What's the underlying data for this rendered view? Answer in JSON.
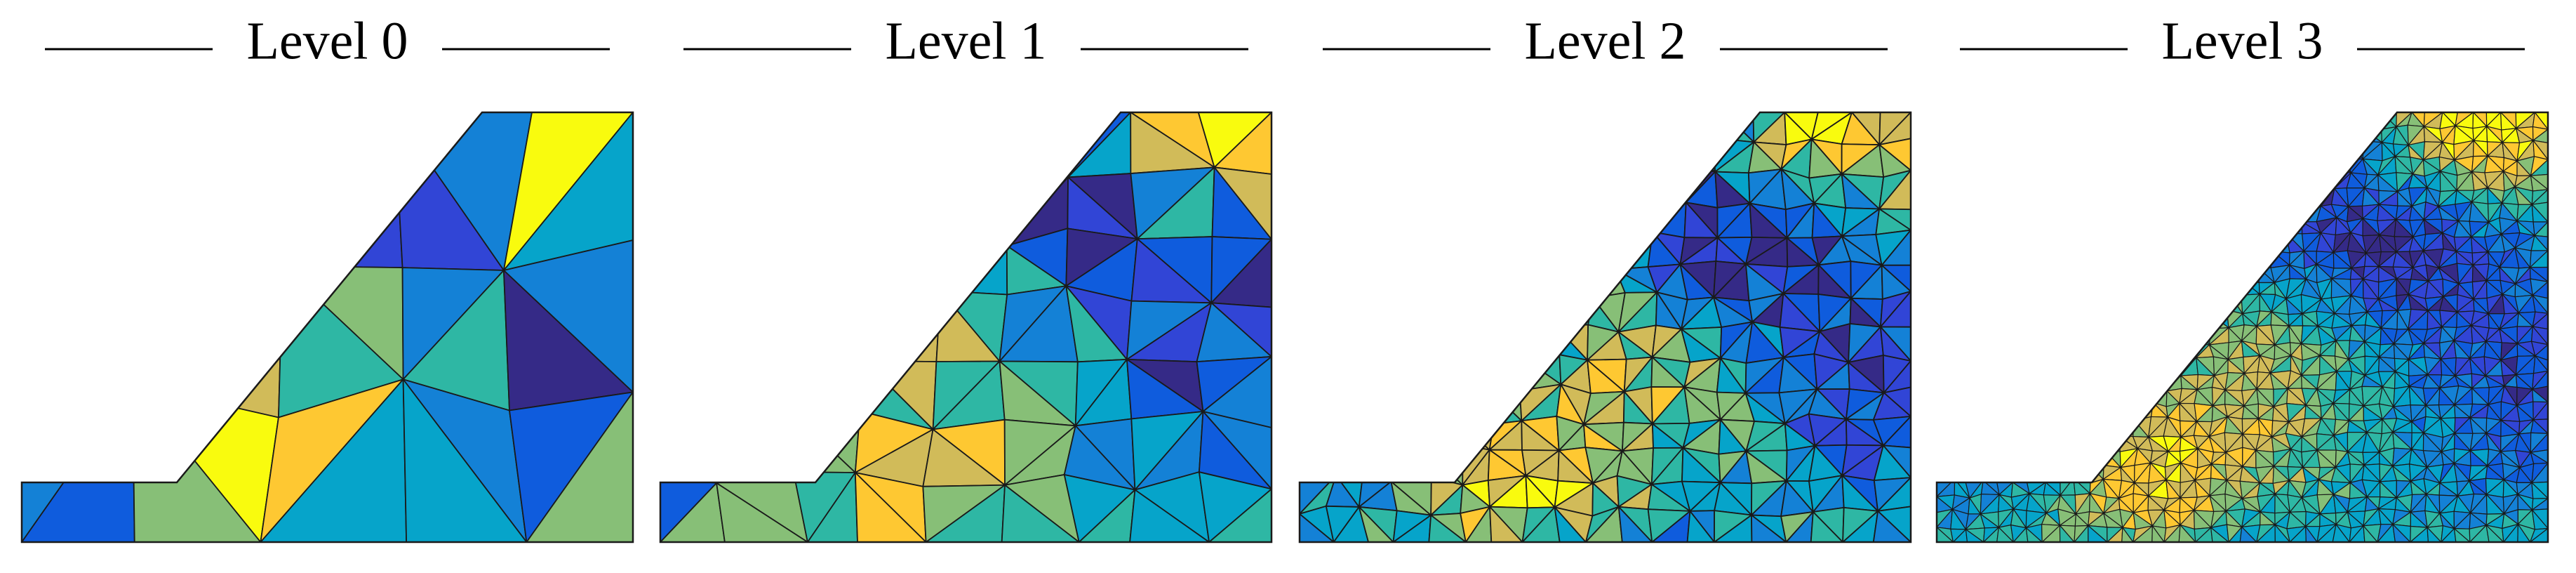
{
  "panels": [
    {
      "title": "Level 0"
    },
    {
      "title": "Level 1"
    },
    {
      "title": "Level 2"
    },
    {
      "title": "Level 3"
    }
  ]
}
